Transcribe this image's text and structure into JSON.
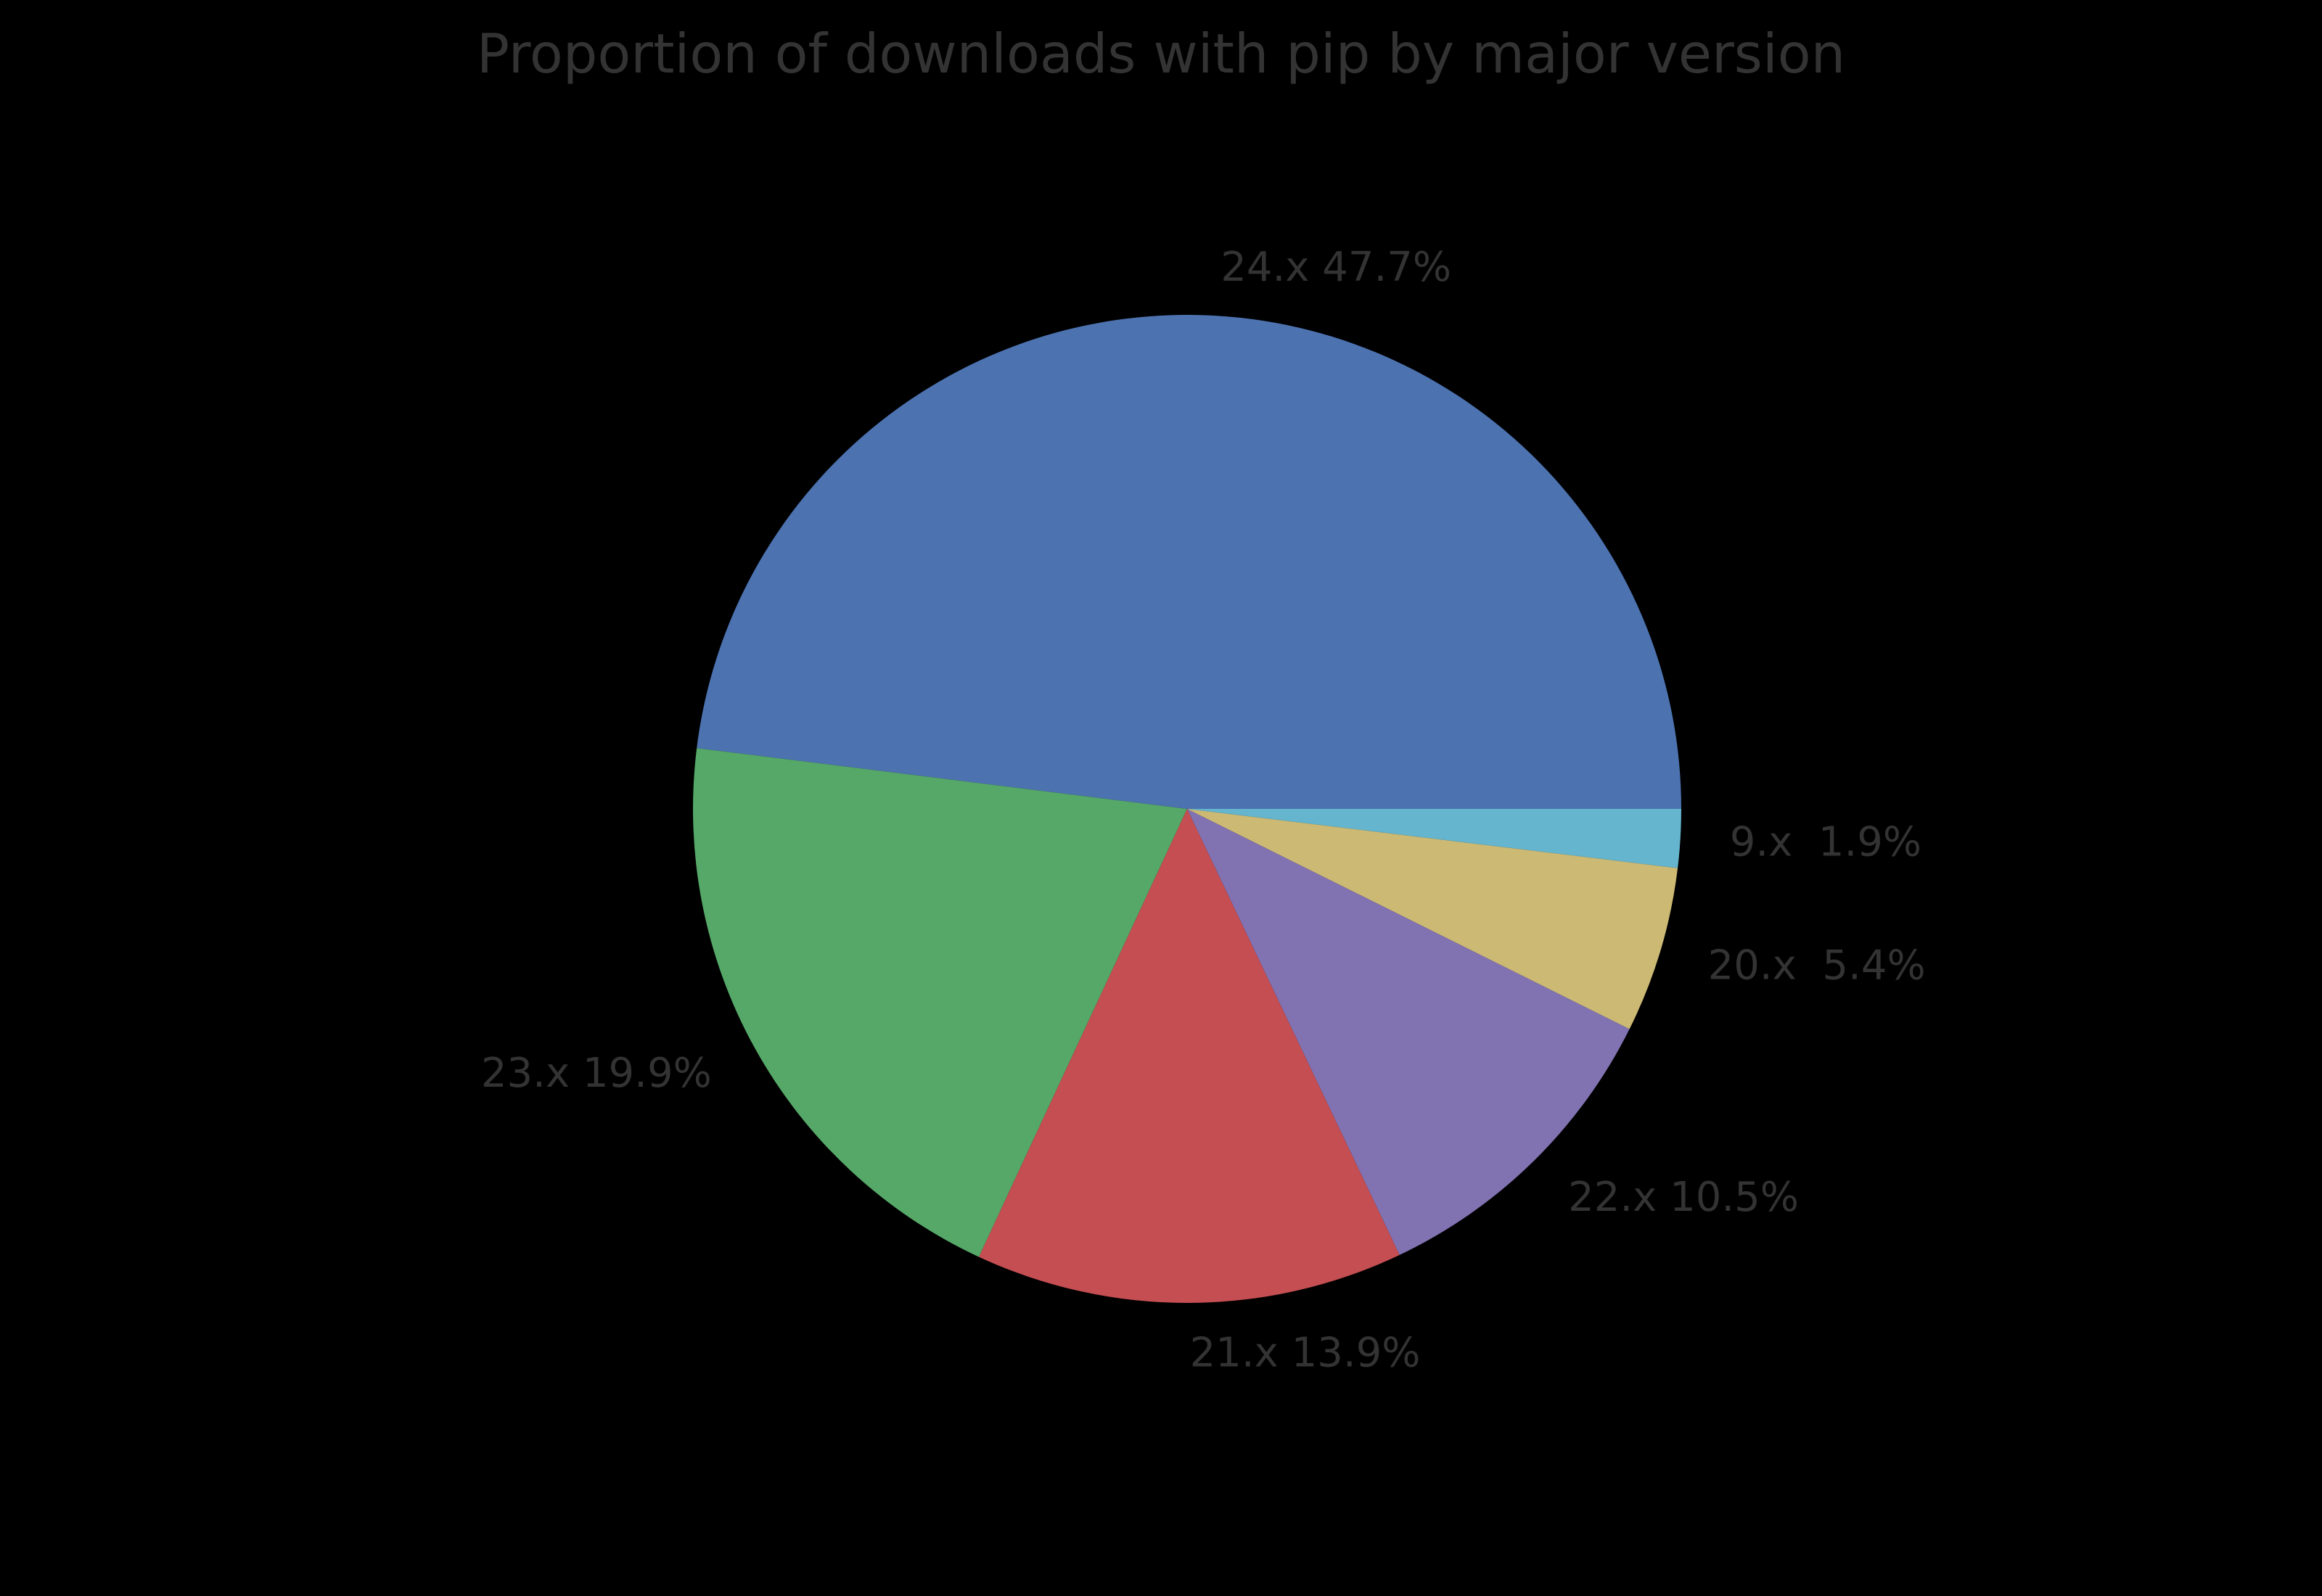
{
  "page": {
    "background_color": "#000000"
  },
  "chart_data": {
    "type": "pie",
    "title": "Proportion of downloads with pip by major version",
    "title_color": "#333333",
    "label_color": "#333333",
    "background_color": "#000000",
    "legend": "none",
    "start_angle_deg": 0,
    "direction": "counterclockwise",
    "labeldistance": 1.1,
    "slices": [
      {
        "category": "24.x",
        "percent": 47.7,
        "display": "24.x 47.7%",
        "color": "#4C72B0"
      },
      {
        "category": "23.x",
        "percent": 19.9,
        "display": "23.x 19.9%",
        "color": "#55A868"
      },
      {
        "category": "21.x",
        "percent": 13.9,
        "display": "21.x 13.9%",
        "color": "#C44E52"
      },
      {
        "category": "22.x",
        "percent": 10.5,
        "display": "22.x 10.5%",
        "color": "#8172B2"
      },
      {
        "category": "20.x",
        "percent": 5.4,
        "display": "20.x  5.4%",
        "color": "#CCB974"
      },
      {
        "category": "9.x",
        "percent": 1.9,
        "display": "9.x  1.9%",
        "color": "#64B5CD"
      }
    ]
  }
}
